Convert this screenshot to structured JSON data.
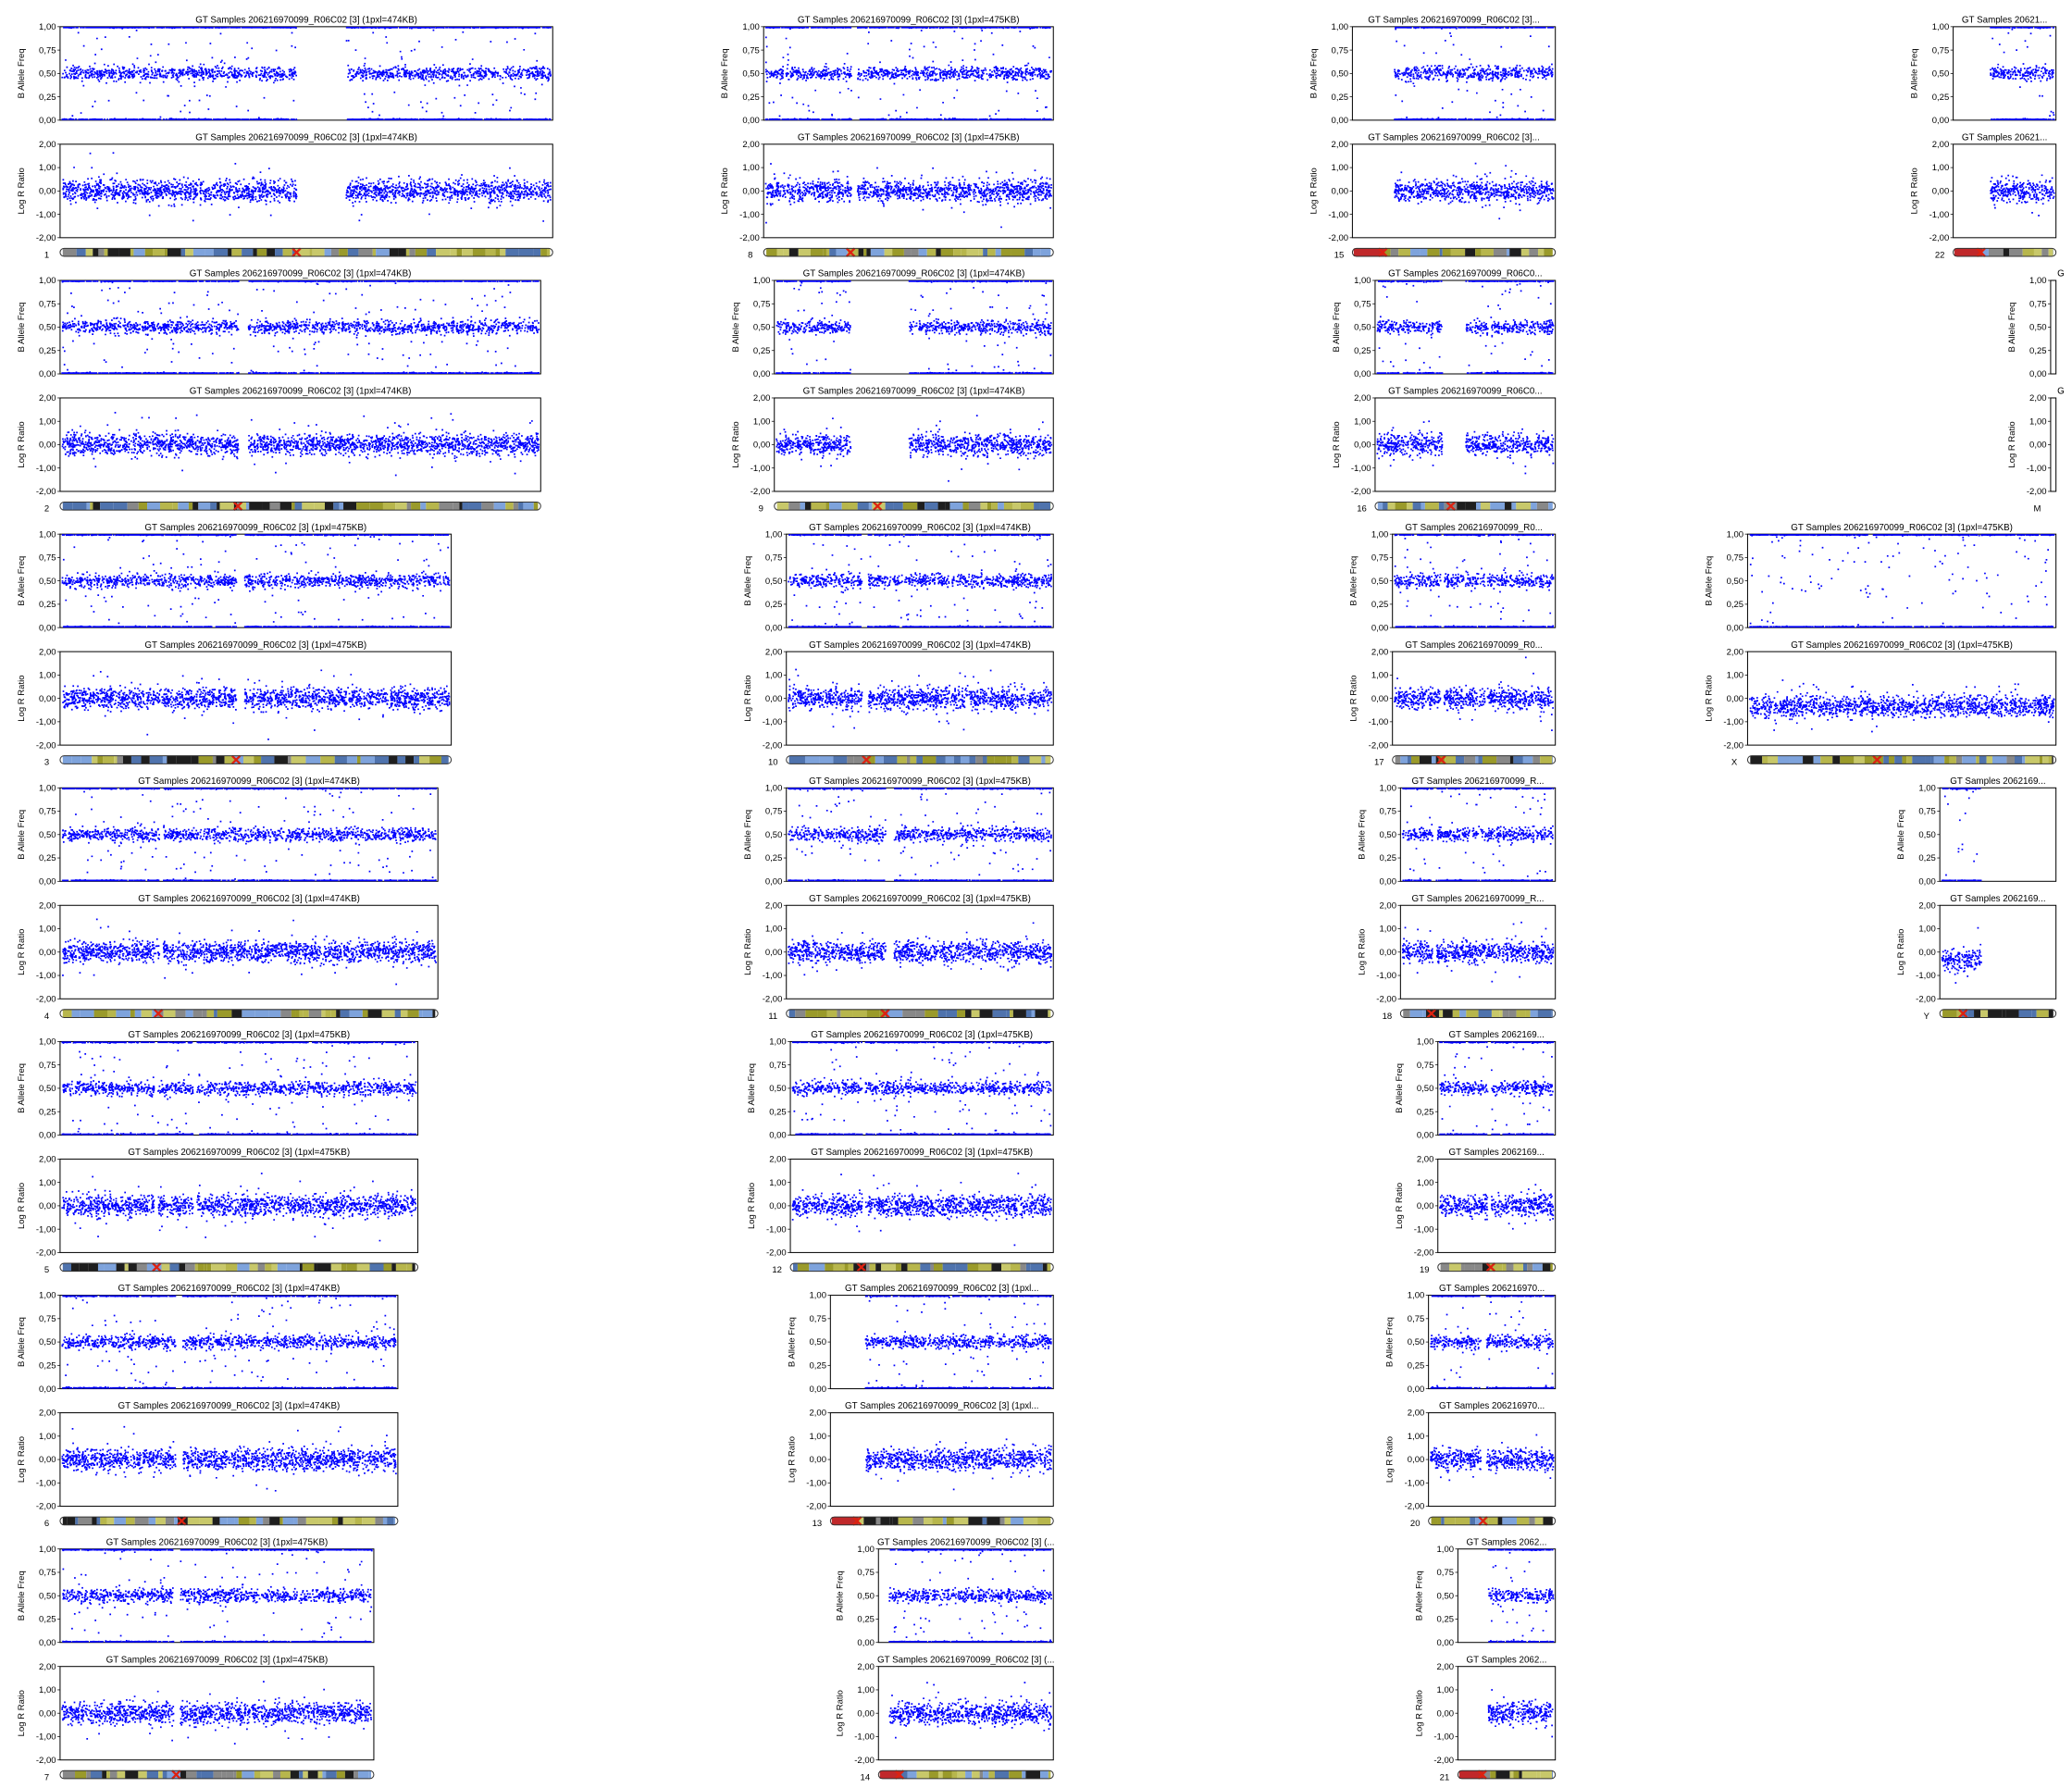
{
  "axes": {
    "baf": {
      "label": "B Allele Freq",
      "ticks": [
        {
          "value": 0,
          "label": "0,00"
        },
        {
          "value": 0.25,
          "label": "0,25"
        },
        {
          "value": 0.5,
          "label": "0,50"
        },
        {
          "value": 0.75,
          "label": "0,75"
        },
        {
          "value": 1,
          "label": "1,00"
        }
      ]
    },
    "lrr": {
      "label": "Log R Ratio",
      "ticks": [
        {
          "value": -2,
          "label": "-2,00"
        },
        {
          "value": -1,
          "label": "-1,00"
        },
        {
          "value": 0,
          "label": "0,00"
        },
        {
          "value": 1,
          "label": "1,00"
        },
        {
          "value": 2,
          "label": "2,00"
        }
      ]
    }
  },
  "panels": [
    {
      "chromosome": "1",
      "baf_title": "GT Samples 206216970099_R06C02 [3]  (1pxl=474KB)",
      "lrr_title": "GT Samples 206216970099_R06C02 [3]  (1pxl=474KB)"
    },
    {
      "chromosome": "2",
      "baf_title": "GT Samples 206216970099_R06C02 [3]  (1pxl=474KB)",
      "lrr_title": "GT Samples 206216970099_R06C02 [3]  (1pxl=474KB)"
    },
    {
      "chromosome": "3",
      "baf_title": "GT Samples 206216970099_R06C02 [3]  (1pxl=475KB)",
      "lrr_title": "GT Samples 206216970099_R06C02 [3]  (1pxl=475KB)"
    },
    {
      "chromosome": "4",
      "baf_title": "GT Samples 206216970099_R06C02 [3]  (1pxl=474KB)",
      "lrr_title": "GT Samples 206216970099_R06C02 [3]  (1pxl=474KB)"
    },
    {
      "chromosome": "5",
      "baf_title": "GT Samples 206216970099_R06C02 [3]  (1pxl=475KB)",
      "lrr_title": "GT Samples 206216970099_R06C02 [3]  (1pxl=475KB)"
    },
    {
      "chromosome": "6",
      "baf_title": "GT Samples 206216970099_R06C02 [3]  (1pxl=474KB)",
      "lrr_title": "GT Samples 206216970099_R06C02 [3]  (1pxl=474KB)"
    },
    {
      "chromosome": "7",
      "baf_title": "GT Samples 206216970099_R06C02 [3]  (1pxl=475KB)",
      "lrr_title": "GT Samples 206216970099_R06C02 [3]  (1pxl=475KB)"
    },
    {
      "chromosome": "8",
      "baf_title": "GT Samples 206216970099_R06C02 [3]  (1pxl=475KB)",
      "lrr_title": "GT Samples 206216970099_R06C02 [3]  (1pxl=475KB)"
    },
    {
      "chromosome": "9",
      "baf_title": "GT Samples 206216970099_R06C02 [3]  (1pxl=474KB)",
      "lrr_title": "GT Samples 206216970099_R06C02 [3]  (1pxl=474KB)"
    },
    {
      "chromosome": "10",
      "baf_title": "GT Samples 206216970099_R06C02 [3]  (1pxl=474KB)",
      "lrr_title": "GT Samples 206216970099_R06C02 [3]  (1pxl=474KB)"
    },
    {
      "chromosome": "11",
      "baf_title": "GT Samples 206216970099_R06C02 [3]  (1pxl=475KB)",
      "lrr_title": "GT Samples 206216970099_R06C02 [3]  (1pxl=475KB)"
    },
    {
      "chromosome": "12",
      "baf_title": "GT Samples 206216970099_R06C02 [3]  (1pxl=475KB)",
      "lrr_title": "GT Samples 206216970099_R06C02 [3]  (1pxl=475KB)"
    },
    {
      "chromosome": "13",
      "baf_title": "GT Samples 206216970099_R06C02 [3]  (1pxl...",
      "lrr_title": "GT Samples 206216970099_R06C02 [3]  (1pxl..."
    },
    {
      "chromosome": "14",
      "baf_title": "GT Samples 206216970099_R06C02 [3]  (...",
      "lrr_title": "GT Samples 206216970099_R06C02 [3]  (..."
    },
    {
      "chromosome": "15",
      "baf_title": "GT Samples 206216970099_R06C02 [3]...",
      "lrr_title": "GT Samples 206216970099_R06C02 [3]..."
    },
    {
      "chromosome": "16",
      "baf_title": "GT Samples 206216970099_R06C0...",
      "lrr_title": "GT Samples 206216970099_R06C0..."
    },
    {
      "chromosome": "17",
      "baf_title": "GT Samples 206216970099_R0...",
      "lrr_title": "GT Samples 206216970099_R0..."
    },
    {
      "chromosome": "18",
      "baf_title": "GT Samples 206216970099_R...",
      "lrr_title": "GT Samples 206216970099_R..."
    },
    {
      "chromosome": "19",
      "baf_title": "GT Samples 2062169...",
      "lrr_title": "GT Samples 2062169..."
    },
    {
      "chromosome": "20",
      "baf_title": "GT Samples 206216970...",
      "lrr_title": "GT Samples 206216970..."
    },
    {
      "chromosome": "21",
      "baf_title": "GT Samples 2062...",
      "lrr_title": "GT Samples 2062..."
    },
    {
      "chromosome": "22",
      "baf_title": "GT Samples 20621...",
      "lrr_title": "GT Samples 20621..."
    },
    {
      "chromosome": "X",
      "baf_title": "GT Samples 206216970099_R06C02 [3]  (1pxl=475KB)",
      "lrr_title": "GT Samples 206216970099_R06C02 [3]  (1pxl=475KB)"
    },
    {
      "chromosome": "Y",
      "baf_title": "GT Samples 2062169...",
      "lrr_title": "GT Samples 2062169..."
    },
    {
      "chromosome": "M",
      "baf_title": "G",
      "lrr_title": "G"
    }
  ]
}
